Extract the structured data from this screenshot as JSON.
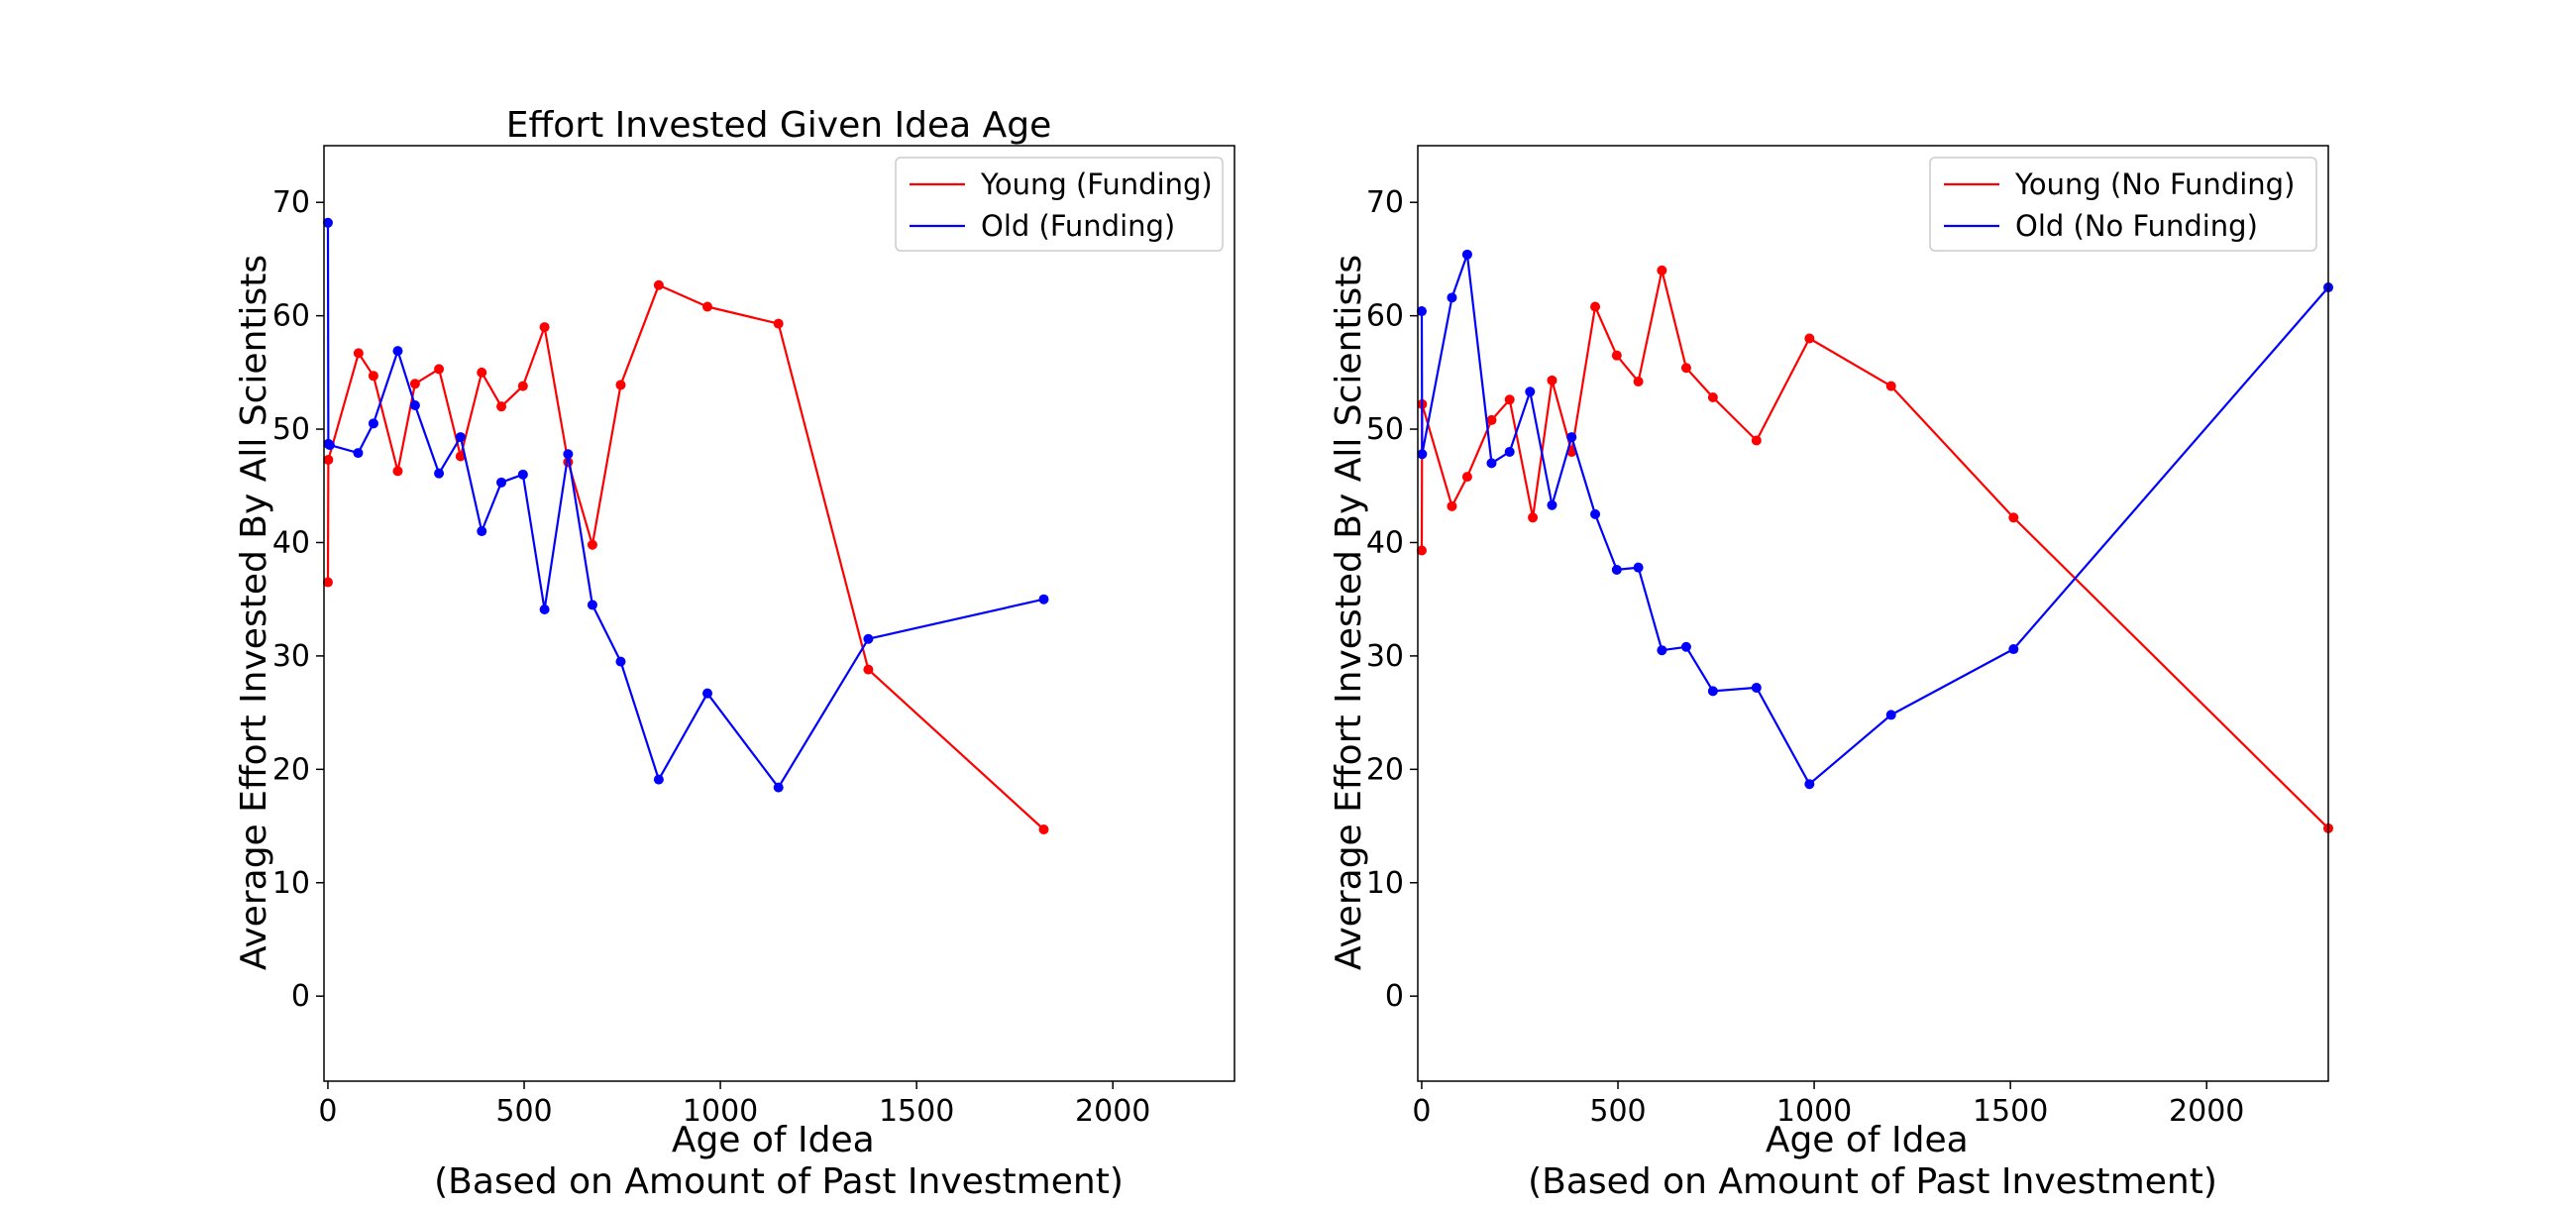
{
  "chart_data": [
    {
      "type": "line",
      "title": "Effort Invested Given Idea Age",
      "xlabel": "Age of Idea\n(Based on Amount of Past Investment)",
      "ylabel": "Average Effort Invested By All Scientists",
      "xlim": [
        -10,
        2310
      ],
      "ylim": [
        -7.5,
        75
      ],
      "xticks": [
        0,
        500,
        1000,
        1500,
        2000
      ],
      "yticks": [
        0,
        10,
        20,
        30,
        40,
        50,
        60,
        70
      ],
      "legend_position": "top-right",
      "series": [
        {
          "name": "Young (Funding)",
          "color": "#ff0000",
          "x": [
            0,
            1,
            78,
            116,
            178,
            222,
            283,
            338,
            392,
            442,
            497,
            552,
            612,
            674,
            746,
            843,
            967,
            1148,
            1377,
            1824
          ],
          "y": [
            36.5,
            47.3,
            56.7,
            54.7,
            46.3,
            54.0,
            55.3,
            47.6,
            55.0,
            52.0,
            53.8,
            59.0,
            47.1,
            39.8,
            53.9,
            62.7,
            60.8,
            59.3,
            28.8,
            14.7
          ]
        },
        {
          "name": "Old (Funding)",
          "color": "#0000ff",
          "x": [
            0,
            1,
            5,
            77,
            116,
            178,
            222,
            283,
            338,
            392,
            442,
            497,
            552,
            612,
            674,
            746,
            843,
            967,
            1148,
            1377,
            1824
          ],
          "y": [
            68.2,
            48.7,
            48.6,
            47.9,
            50.5,
            56.9,
            52.1,
            46.1,
            49.3,
            41.0,
            45.3,
            46.0,
            34.1,
            47.8,
            34.5,
            29.5,
            19.1,
            26.7,
            18.4,
            31.5,
            35.0
          ]
        }
      ]
    },
    {
      "type": "line",
      "title": "",
      "xlabel": "Age of Idea\n(Based on Amount of Past Investment)",
      "ylabel": "Average Effort Invested By All Scientists",
      "xlim": [
        -10,
        2310
      ],
      "ylim": [
        -7.5,
        75
      ],
      "xticks": [
        0,
        500,
        1000,
        1500,
        2000
      ],
      "yticks": [
        0,
        10,
        20,
        30,
        40,
        50,
        60,
        70
      ],
      "legend_position": "top-right",
      "series": [
        {
          "name": "Young (No Funding)",
          "color": "#ff0000",
          "x": [
            0,
            1,
            77,
            116,
            178,
            224,
            283,
            332,
            382,
            442,
            497,
            552,
            612,
            674,
            742,
            853,
            988,
            1196,
            1508,
            2310
          ],
          "y": [
            39.3,
            52.2,
            43.2,
            45.8,
            50.8,
            52.6,
            42.2,
            54.3,
            48.0,
            60.8,
            56.5,
            54.2,
            64.0,
            55.4,
            52.8,
            49.0,
            58.0,
            53.8,
            42.2,
            14.8
          ]
        },
        {
          "name": "Old (No Funding)",
          "color": "#0000ff",
          "x": [
            0,
            1,
            77,
            116,
            178,
            224,
            276,
            332,
            382,
            442,
            497,
            552,
            612,
            674,
            742,
            853,
            988,
            1196,
            1508,
            2310
          ],
          "y": [
            60.4,
            47.8,
            61.6,
            65.4,
            47.0,
            48.0,
            53.3,
            43.3,
            49.3,
            42.5,
            37.6,
            37.8,
            30.5,
            30.8,
            26.9,
            27.2,
            18.7,
            24.8,
            30.6,
            62.5
          ]
        }
      ]
    }
  ]
}
